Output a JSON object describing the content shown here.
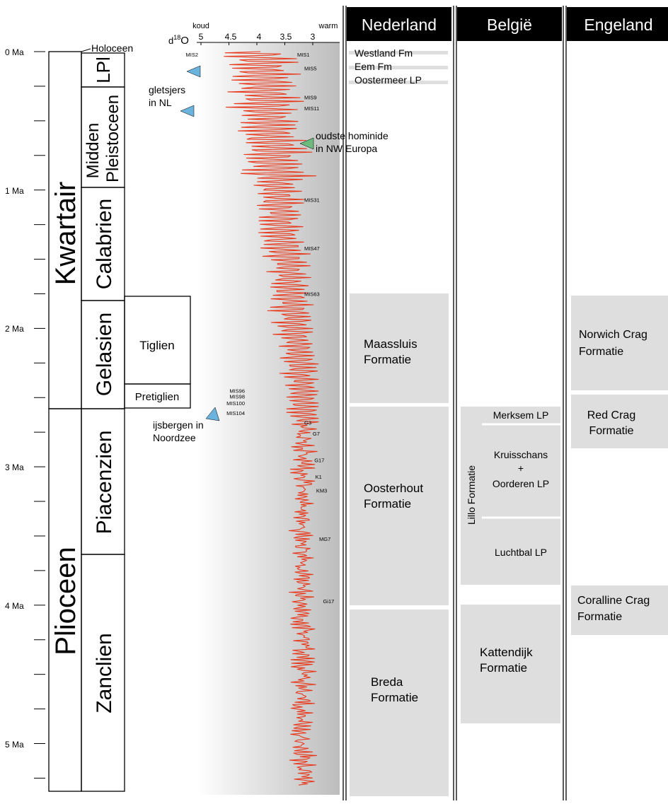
{
  "age_axis": {
    "labels": [
      "0 Ma",
      "1 Ma",
      "2 Ma",
      "3 Ma",
      "4 Ma",
      "5 Ma"
    ]
  },
  "chronostrat": {
    "system_quaternary": "Kwartair",
    "system_pliocene": "Plioceen",
    "holocene": "Holoceen",
    "stages": [
      {
        "label": "LPl",
        "top_ma": 0.0117,
        "base_ma": 0.129
      },
      {
        "label": "Midden Pleistoceen",
        "line1": "Midden",
        "line2": "Pleistoceen",
        "top_ma": 0.129,
        "base_ma": 0.774
      },
      {
        "label": "Calabrien",
        "top_ma": 0.774,
        "base_ma": 1.8
      },
      {
        "label": "Gelasien",
        "top_ma": 1.8,
        "base_ma": 2.58
      },
      {
        "label": "Piacenzien",
        "top_ma": 2.58,
        "base_ma": 3.6
      },
      {
        "label": "Zanclien",
        "top_ma": 3.6,
        "base_ma": 5.33
      }
    ],
    "dutch_stages": [
      {
        "label": "Tiglien",
        "top_ma": 1.8,
        "base_ma": 2.4
      },
      {
        "label": "Pretiglien",
        "top_ma": 2.4,
        "base_ma": 2.58
      }
    ]
  },
  "isotope_curve": {
    "axis_symbol": "d",
    "axis_sup": "18",
    "axis_element": "O",
    "cold_label": "koud",
    "warm_label": "warm",
    "ticks": [
      "5",
      "4.5",
      "4",
      "3.5",
      "3"
    ],
    "tick_values": [
      5,
      4.5,
      4,
      3.5,
      3
    ],
    "stage_labels": [
      {
        "label": "MIS2",
        "ma": 0.02,
        "side": "left"
      },
      {
        "label": "MIS1",
        "ma": 0.02,
        "side": "right"
      },
      {
        "label": "MIS5",
        "ma": 0.12,
        "side": "right"
      },
      {
        "label": "MIS9",
        "ma": 0.33,
        "side": "right"
      },
      {
        "label": "MIS11",
        "ma": 0.41,
        "side": "right"
      },
      {
        "label": "MIS31",
        "ma": 1.07,
        "side": "right"
      },
      {
        "label": "MIS47",
        "ma": 1.42,
        "side": "right"
      },
      {
        "label": "MIS63",
        "ma": 1.75,
        "side": "right"
      },
      {
        "label": "MIS96",
        "ma": 2.45,
        "side": "left"
      },
      {
        "label": "MIS98",
        "ma": 2.49,
        "side": "left"
      },
      {
        "label": "MIS100",
        "ma": 2.54,
        "side": "left"
      },
      {
        "label": "MIS104",
        "ma": 2.61,
        "side": "left"
      },
      {
        "label": "G3",
        "ma": 2.68,
        "side": "right"
      },
      {
        "label": "G7",
        "ma": 2.76,
        "side": "right"
      },
      {
        "label": "G17",
        "ma": 2.95,
        "side": "right"
      },
      {
        "label": "K1",
        "ma": 3.07,
        "side": "right"
      },
      {
        "label": "KM3",
        "ma": 3.17,
        "side": "right"
      },
      {
        "label": "MG7",
        "ma": 3.52,
        "side": "right"
      },
      {
        "label": "Gi17",
        "ma": 3.97,
        "side": "right"
      }
    ]
  },
  "events": [
    {
      "line1": "gletsjers",
      "line2": "in NL",
      "color": "#6ab3dd"
    },
    {
      "line1": "oudste hominide",
      "line2": "in NW Europa",
      "color": "#6cba7c"
    },
    {
      "line1": "ijsbergen in",
      "line2": "Noordzee",
      "color": "#6ab3dd"
    }
  ],
  "columns": {
    "nl": {
      "header": "Nederland",
      "thin_units": [
        "Westland Fm",
        "Eem Fm",
        "Oostermeer LP"
      ],
      "units": [
        {
          "line1": "Maassluis",
          "line2": "Formatie"
        },
        {
          "line1": "Oosterhout",
          "line2": "Formatie"
        },
        {
          "line1": "Breda",
          "line2": "Formatie"
        }
      ]
    },
    "be": {
      "header": "België",
      "lillo_label": "Lillo Formatie",
      "merksem": "Merksem LP",
      "kruisschans_1": "Kruisschans",
      "kruisschans_2": "+",
      "kruisschans_3": "Oorderen LP",
      "luchtbal": "Luchtbal LP",
      "kattendijk_1": "Kattendijk",
      "kattendijk_2": "Formatie"
    },
    "en": {
      "header": "Engeland",
      "units": [
        {
          "line1": "Norwich Crag",
          "line2": "Formatie"
        },
        {
          "line1": "Red Crag",
          "line2": "Formatie"
        },
        {
          "line1": "Coralline Crag",
          "line2": "Formatie"
        }
      ]
    }
  },
  "colors": {
    "curve": "#e8391d",
    "unit_fill": "#dedede",
    "header_fill": "#000000",
    "header_text": "#ffffff",
    "gradient_dark": "#bdbdbd"
  }
}
